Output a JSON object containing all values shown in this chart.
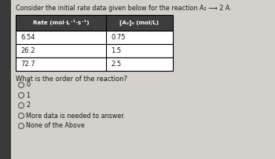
{
  "title_line1": "Consider the initial rate data given below for the reaction A₂",
  "title_arrow": "⟶",
  "title_line2": "2 A.",
  "title_full": "Consider the initial rate data given below for the reaction A₂ ⟶ 2 A.",
  "col1_header": "Rate (mol·L⁻¹·s⁻¹)",
  "col2_header": "[A₂]₀ (mol/L)",
  "rows": [
    [
      "6.54",
      "0.75"
    ],
    [
      "26.2",
      "1.5"
    ],
    [
      "72.7",
      "2.5"
    ]
  ],
  "question": "What is the order of the reaction?",
  "options": [
    "0",
    "1",
    "2",
    "More data is needed to answer.",
    "None of the Above"
  ],
  "bg_color": "#d4d0cb",
  "left_bar_color": "#3a3a3a",
  "table_bg": "#ffffff",
  "table_border": "#000000",
  "header_bg": "#3d3d3d",
  "header_text": "#ffffff",
  "text_color": "#1a1a1a",
  "radio_color": "#555555"
}
